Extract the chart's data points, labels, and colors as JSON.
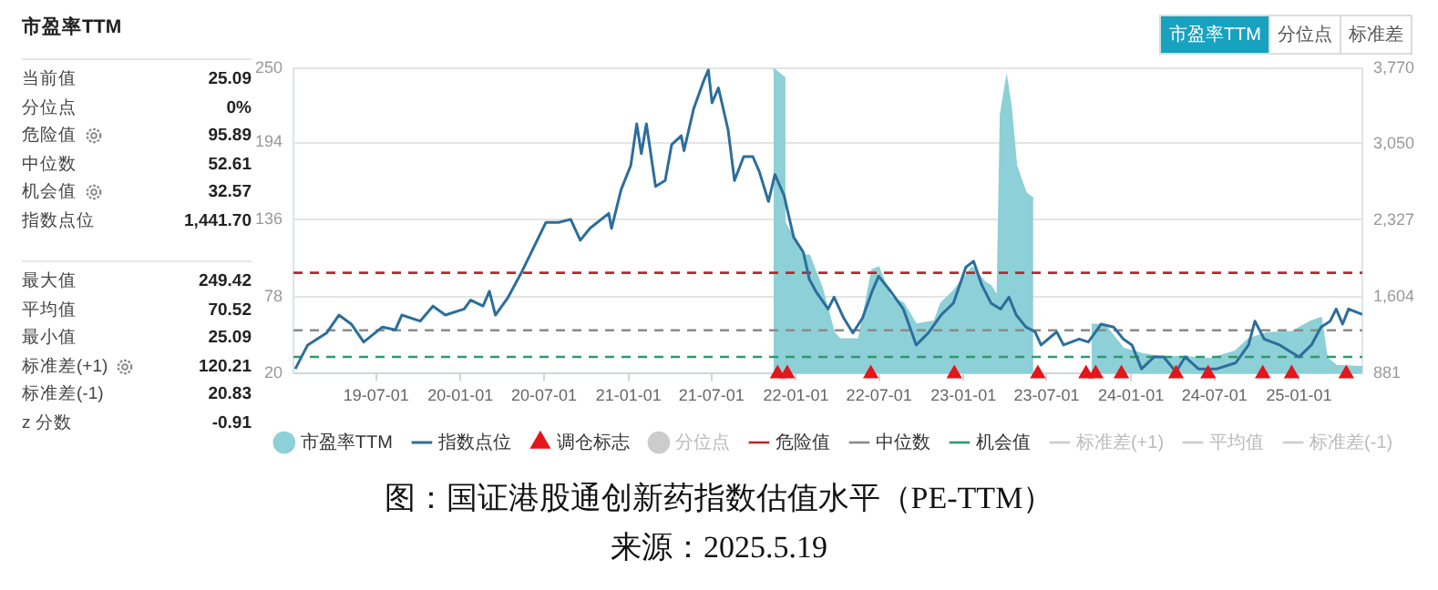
{
  "chart_data": [
    {
      "type": "other",
      "title": "市盈率TTM",
      "annotations": [
        "当前值",
        "25.09",
        "分位点",
        "0%",
        "危险值",
        "95.89",
        "中位数",
        "52.61",
        "机会值",
        "32.57",
        "指数点位",
        "1,441.70",
        "最大值",
        "249.42",
        "平均值",
        "70.52",
        "最小值",
        "25.09",
        "标准差(+1)",
        "120.21",
        "标准差(-1)",
        "20.83",
        "z 分数",
        "-0.91"
      ]
    },
    {
      "type": "other",
      "annotations": [
        "市盈率TTM",
        "分位点",
        "标准差"
      ]
    },
    {
      "type": "line",
      "title": "图：国证港股通创新药指数估值水平（PE-TTM）",
      "annotations": [
        "来源：2025.5.19"
      ],
      "xlim": [
        "2019-01-02",
        "2025-05-19"
      ],
      "xticks": [
        {
          "value": "2019-07-01",
          "label": "19-07-01"
        },
        {
          "value": "2020-01-01",
          "label": "20-01-01"
        },
        {
          "value": "2020-07-01",
          "label": "20-07-01"
        },
        {
          "value": "2021-01-01",
          "label": "21-01-01"
        },
        {
          "value": "2021-07-01",
          "label": "21-07-01"
        },
        {
          "value": "2022-01-01",
          "label": "22-01-01"
        },
        {
          "value": "2022-07-01",
          "label": "22-07-01"
        },
        {
          "value": "2023-01-01",
          "label": "23-01-01"
        },
        {
          "value": "2023-07-01",
          "label": "23-07-01"
        },
        {
          "value": "2024-01-01",
          "label": "24-01-01"
        },
        {
          "value": "2024-07-01",
          "label": "24-07-01"
        },
        {
          "value": "2025-01-01",
          "label": "25-01-01"
        }
      ],
      "ylim": [
        20,
        250
      ],
      "yticks": [
        20,
        78,
        136,
        194,
        250
      ],
      "y2lim": [
        881,
        3770
      ],
      "y2ticks": [
        881,
        {
          "value": 1604,
          "label": "1,604"
        },
        {
          "value": 2327,
          "label": "2,327"
        },
        {
          "value": 3050,
          "label": "3,050"
        },
        {
          "value": 3770,
          "label": "3,770"
        }
      ],
      "grid": "y",
      "legend": "bottom",
      "series": [
        {
          "name": "市盈率TTM",
          "type": "area",
          "color": "#8dd0d7",
          "x": [
            "2021-11-13",
            "2021-12-06",
            "2021-12-07",
            "2022-01-17",
            "2022-01-30",
            "2022-02-26",
            "2022-03-25",
            "2022-04-07",
            "2022-05-18",
            "2022-06-16",
            "2022-06-30",
            "2022-07-26",
            "2022-08-23",
            "2022-09-20",
            "2022-10-30",
            "2022-11-13",
            "2022-12-10",
            "2023-01-20",
            "2023-02-16",
            "2023-03-02",
            "2023-03-16",
            "2023-03-23",
            "2023-04-05",
            "2023-04-14",
            "2023-04-26",
            "2023-05-17",
            "2023-06-02",
            "2023-06-03",
            "2023-10-06",
            "2023-10-07",
            "2023-11-04",
            "2023-12-15",
            "2024-01-24",
            "2024-03-05",
            "2024-04-28",
            "2024-06-20",
            "2024-08-16",
            "2024-09-13",
            "2024-10-23",
            "2024-12-17",
            "2025-01-28",
            "2025-02-18",
            "2025-03-03",
            "2025-03-23",
            "2025-05-19"
          ],
          "values": [
            249.42,
            243,
            134,
            109,
            109,
            85,
            50.6,
            46,
            46,
            98,
            100,
            77.6,
            73,
            57,
            59.6,
            73,
            82,
            100,
            89,
            86,
            77.6,
            215,
            242,
            221.6,
            176.6,
            156,
            151.9,
            null,
            null,
            57,
            57,
            39,
            35,
            32.6,
            32.6,
            31,
            37,
            46,
            50.6,
            51.5,
            59.6,
            62,
            31.7,
            26,
            25.09
          ]
        },
        {
          "name": "指数点位",
          "type": "line",
          "axis": "y2",
          "color": "#2c6e9b",
          "x": [
            "2019-01-06",
            "2019-02-02",
            "2019-03-15",
            "2019-04-11",
            "2019-05-08",
            "2019-06-04",
            "2019-07-15",
            "2019-08-12",
            "2019-08-26",
            "2019-10-05",
            "2019-11-02",
            "2019-11-29",
            "2020-01-09",
            "2020-01-23",
            "2020-02-19",
            "2020-03-04",
            "2020-03-17",
            "2020-04-14",
            "2020-05-12",
            "2020-07-05",
            "2020-08-02",
            "2020-08-28",
            "2020-09-18",
            "2020-10-09",
            "2020-11-19",
            "2020-11-25",
            "2020-12-16",
            "2021-01-06",
            "2021-01-19",
            "2021-01-29",
            "2021-02-09",
            "2021-03-01",
            "2021-03-22",
            "2021-04-05",
            "2021-04-26",
            "2021-05-02",
            "2021-05-23",
            "2021-06-13",
            "2021-06-24",
            "2021-07-02",
            "2021-07-16",
            "2021-08-06",
            "2021-08-20",
            "2021-09-09",
            "2021-09-29",
            "2021-10-13",
            "2021-11-02",
            "2021-11-16",
            "2021-12-06",
            "2021-12-27",
            "2022-01-17",
            "2022-01-30",
            "2022-02-13",
            "2022-03-12",
            "2022-03-25",
            "2022-04-15",
            "2022-05-05",
            "2022-05-26",
            "2022-06-16",
            "2022-06-30",
            "2022-07-26",
            "2022-08-23",
            "2022-09-20",
            "2022-10-16",
            "2022-11-13",
            "2022-12-10",
            "2023-01-06",
            "2023-01-23",
            "2023-02-10",
            "2023-03-02",
            "2023-03-23",
            "2023-04-10",
            "2023-04-26",
            "2023-05-17",
            "2023-06-06",
            "2023-06-19",
            "2023-07-23",
            "2023-08-07",
            "2023-09-10",
            "2023-09-30",
            "2023-10-28",
            "2023-11-24",
            "2023-12-15",
            "2024-01-03",
            "2024-01-24",
            "2024-02-20",
            "2024-03-12",
            "2024-04-08",
            "2024-04-28",
            "2024-05-27",
            "2024-07-06",
            "2024-08-16",
            "2024-09-13",
            "2024-09-27",
            "2024-10-17",
            "2024-11-20",
            "2025-01-01",
            "2025-01-28",
            "2025-02-18",
            "2025-03-10",
            "2025-03-23",
            "2025-04-06",
            "2025-04-19",
            "2025-05-19"
          ],
          "values": [
            926,
            1152,
            1265,
            1435,
            1350,
            1180,
            1322,
            1295,
            1435,
            1378,
            1520,
            1435,
            1492,
            1576,
            1520,
            1661,
            1435,
            1605,
            1831,
            2311,
            2311,
            2340,
            2142,
            2255,
            2396,
            2255,
            2622,
            2849,
            3244,
            2961,
            3244,
            2651,
            2707,
            3046,
            3131,
            2990,
            3385,
            3640,
            3753,
            3442,
            3583,
            3187,
            2707,
            2933,
            2933,
            2792,
            2509,
            2764,
            2566,
            2170,
            2029,
            1774,
            1661,
            1492,
            1605,
            1407,
            1265,
            1407,
            1661,
            1802,
            1661,
            1492,
            1152,
            1265,
            1435,
            1548,
            1887,
            1944,
            1718,
            1548,
            1492,
            1605,
            1435,
            1322,
            1276,
            1152,
            1276,
            1152,
            1209,
            1180,
            1350,
            1322,
            1209,
            1152,
            926,
            1039,
            1039,
            898,
            1039,
            926,
            926,
            983,
            1152,
            1378,
            1209,
            1152,
            1039,
            1152,
            1322,
            1378,
            1492,
            1350,
            1492,
            1441.7
          ]
        },
        {
          "name": "调仓标志",
          "type": "scatter",
          "marker": "triangle",
          "color": "#e3161b",
          "x": [
            "2021-11-22",
            "2021-12-13",
            "2022-06-13",
            "2022-12-12",
            "2023-06-12",
            "2023-09-25",
            "2023-10-16",
            "2023-12-11",
            "2024-04-08",
            "2024-06-17",
            "2024-10-14",
            "2024-12-16",
            "2025-04-14"
          ],
          "values": [
            20,
            20,
            20,
            20,
            20,
            20,
            20,
            20,
            20,
            20,
            20,
            20,
            20
          ]
        },
        {
          "name": "分位点",
          "type": "scatter",
          "marker": "circle",
          "color": "#cccccc"
        }
      ],
      "ref_lines": [
        {
          "axis": "y",
          "value": 95.89,
          "label": "危险值",
          "color": "#b52a2a",
          "line_style": "dashed"
        },
        {
          "axis": "y",
          "value": 52.61,
          "label": "中位数",
          "color": "#8a8a8a",
          "line_style": "dashed"
        },
        {
          "axis": "y",
          "value": 32.57,
          "label": "机会值",
          "color": "#2e9a6c",
          "line_style": "dashed"
        },
        {
          "value": null,
          "label": "标准差(+1)",
          "color": "#cccccc",
          "line_style": "dashed"
        },
        {
          "value": null,
          "label": "平均值",
          "color": "#cccccc",
          "line_style": "dashed"
        },
        {
          "value": null,
          "label": "标准差(-1)",
          "color": "#cccccc",
          "line_style": "dashed"
        }
      ]
    }
  ]
}
